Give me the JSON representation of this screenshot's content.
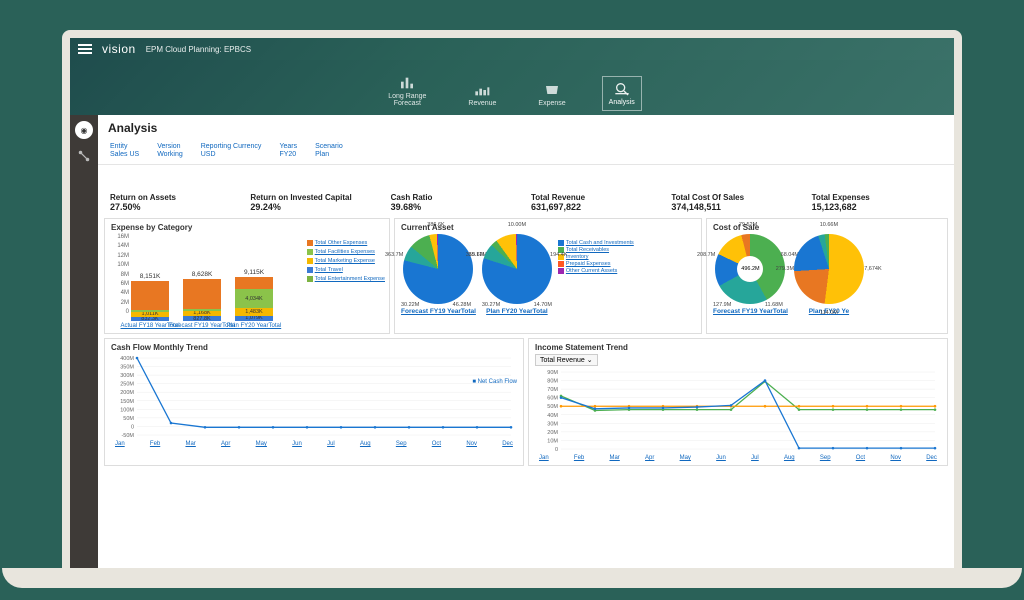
{
  "brand": "vision",
  "subbrand": "EPM Cloud Planning: EPBCS",
  "nav": [
    {
      "label": "Long Range\nForecast"
    },
    {
      "label": "Revenue"
    },
    {
      "label": "Expense"
    },
    {
      "label": "Analysis"
    }
  ],
  "page_title": "Analysis",
  "pov": [
    {
      "label": "Entity",
      "value": "Sales US"
    },
    {
      "label": "Version",
      "value": "Working"
    },
    {
      "label": "Reporting Currency",
      "value": "USD"
    },
    {
      "label": "Years",
      "value": "FY20"
    },
    {
      "label": "Scenario",
      "value": "Plan"
    }
  ],
  "kpis": [
    {
      "title": "Return on Assets",
      "value": "27.50%"
    },
    {
      "title": "Return on Invested Capital",
      "value": "29.24%"
    },
    {
      "title": "Cash Ratio",
      "value": "39.68%"
    },
    {
      "title": "Total Revenue",
      "value": "631,697,822"
    },
    {
      "title": "Total Cost Of Sales",
      "value": "374,148,511"
    },
    {
      "title": "Total Expenses",
      "value": "15,123,682"
    }
  ],
  "expense_chart": {
    "title": "Expense by Category",
    "yticks": [
      "16M",
      "14M",
      "12M",
      "10M",
      "8M",
      "6M",
      "4M",
      "2M",
      "0"
    ],
    "ymax": 16,
    "colors": {
      "other": "#e87722",
      "facilities": "#8bc34a",
      "marketing": "#f5b800",
      "travel": "#3a7bd5",
      "entertainment": "#7cb342"
    },
    "legend": [
      {
        "label": "Total Other Expenses",
        "color": "#e87722"
      },
      {
        "label": "Total Facilities Expenses",
        "color": "#8bc34a"
      },
      {
        "label": "Total Marketing Expense",
        "color": "#f5b800"
      },
      {
        "label": "Total Travel",
        "color": "#3a7bd5"
      },
      {
        "label": "Total Entertainment Expense",
        "color": "#7cb342"
      }
    ],
    "bars": [
      {
        "label": "Actual FY18 YearTotal",
        "total": "8,151K",
        "segments": [
          {
            "v": 0.9,
            "t": "832.3K",
            "c": "#3a7bd5"
          },
          {
            "v": 1.0,
            "t": "1,011K",
            "c": "#f5b800"
          },
          {
            "v": 0.3,
            "t": "",
            "c": "#8bc34a"
          },
          {
            "v": 6.0,
            "t": "",
            "c": "#e87722"
          }
        ]
      },
      {
        "label": "Forecast FY19 YearTotal",
        "total": "8,628K",
        "segments": [
          {
            "v": 0.95,
            "t": "827.8K",
            "c": "#3a7bd5"
          },
          {
            "v": 1.2,
            "t": "1,168K",
            "c": "#f5b800"
          },
          {
            "v": 0.3,
            "t": "",
            "c": "#8bc34a"
          },
          {
            "v": 6.2,
            "t": "",
            "c": "#e87722"
          }
        ]
      },
      {
        "label": "Plan FY20 YearTotal",
        "total": "9,115K",
        "segments": [
          {
            "v": 1.08,
            "t": "1,079K",
            "c": "#3a7bd5"
          },
          {
            "v": 1.5,
            "t": "1,483K",
            "c": "#f5b800"
          },
          {
            "v": 4.0,
            "t": "4,034K",
            "c": "#8bc34a"
          },
          {
            "v": 2.5,
            "t": "",
            "c": "#e87722"
          }
        ]
      }
    ]
  },
  "current_asset": {
    "title": "Current Asset",
    "legend": [
      {
        "label": "Total Cash and Investments",
        "color": "#1976d2"
      },
      {
        "label": "Total Receivables",
        "color": "#4caf50"
      },
      {
        "label": "Inventory",
        "color": "#ffc107"
      },
      {
        "label": "Prepaid Expenses",
        "color": "#ff5722"
      },
      {
        "label": "Other Current Assets",
        "color": "#9c27b0"
      }
    ],
    "pies": [
      {
        "link": "Forecast FY19 YearTotal",
        "labels": [
          "386.6K",
          "19.17M",
          "46.28M",
          "30.22M",
          "363.7M"
        ],
        "slices": [
          {
            "c": "#1976d2",
            "p": 79
          },
          {
            "c": "#26a69a",
            "p": 7
          },
          {
            "c": "#4caf50",
            "p": 10
          },
          {
            "c": "#ffc107",
            "p": 3.5
          },
          {
            "c": "#9c27b0",
            "p": 0.5
          }
        ]
      },
      {
        "link": "Plan FY20 YearTotal",
        "labels": [
          "10.00M",
          "194.4K",
          "14.70M",
          "30.27M",
          "355.6M"
        ],
        "slices": [
          {
            "c": "#1976d2",
            "p": 80
          },
          {
            "c": "#26a69a",
            "p": 7
          },
          {
            "c": "#4caf50",
            "p": 3
          },
          {
            "c": "#ffc107",
            "p": 9.5
          },
          {
            "c": "#9c27b0",
            "p": 0.5
          }
        ]
      }
    ]
  },
  "cost_of_sale": {
    "title": "Cost of Sale",
    "pies": [
      {
        "link": "Forecast FY19 YearTotal",
        "labels": [
          "79.52M",
          "68.04M",
          "11.68M",
          "127.9M",
          "208.7M"
        ],
        "slices": [
          {
            "c": "#4caf50",
            "p": 42
          },
          {
            "c": "#26a69a",
            "p": 25
          },
          {
            "c": "#1976d2",
            "p": 15
          },
          {
            "c": "#ffc107",
            "p": 14
          },
          {
            "c": "#e87722",
            "p": 4
          }
        ],
        "center": "496.2M"
      },
      {
        "link": "Plan FY20 Ye",
        "labels": [
          "10.66M",
          "7,674K",
          "114.0M",
          "279.3M"
        ],
        "slices": [
          {
            "c": "#ffc107",
            "p": 52
          },
          {
            "c": "#e87722",
            "p": 22
          },
          {
            "c": "#1976d2",
            "p": 21
          },
          {
            "c": "#26a69a",
            "p": 3
          },
          {
            "c": "#4caf50",
            "p": 2
          }
        ]
      }
    ]
  },
  "cashflow": {
    "title": "Cash Flow Monthly Trend",
    "legend": "Net Cash Flow",
    "months": [
      "Jan",
      "Feb",
      "Mar",
      "Apr",
      "May",
      "Jun",
      "Jul",
      "Aug",
      "Sep",
      "Oct",
      "Nov",
      "Dec"
    ],
    "yticks": [
      "400M",
      "350M",
      "300M",
      "250M",
      "200M",
      "150M",
      "100M",
      "50M",
      "0",
      "-50M"
    ],
    "series": {
      "color": "#1976d2",
      "points": [
        400,
        20,
        -5,
        -5,
        -5,
        -5,
        -5,
        -5,
        -5,
        -5,
        -5,
        -5
      ]
    }
  },
  "income": {
    "title": "Income Statement Trend",
    "dropdown": "Total Revenue",
    "months": [
      "Jan",
      "Feb",
      "Mar",
      "Apr",
      "May",
      "Jun",
      "Jul",
      "Aug",
      "Sep",
      "Oct",
      "Nov",
      "Dec"
    ],
    "yticks": [
      "90M",
      "80M",
      "70M",
      "60M",
      "50M",
      "40M",
      "30M",
      "20M",
      "10M",
      "0"
    ],
    "series": [
      {
        "color": "#4caf50",
        "points": [
          62,
          45,
          46,
          46,
          46,
          46,
          79,
          46,
          46,
          46,
          46,
          46
        ]
      },
      {
        "color": "#ff9800",
        "points": [
          50,
          50,
          50,
          50,
          50,
          50,
          50,
          50,
          50,
          50,
          50,
          50
        ]
      },
      {
        "color": "#1976d2",
        "points": [
          60,
          47,
          48,
          48,
          49,
          51,
          80,
          1,
          1,
          1,
          1,
          1
        ]
      }
    ]
  }
}
